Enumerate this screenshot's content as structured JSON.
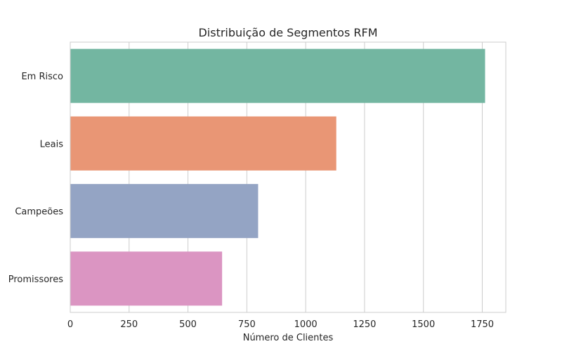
{
  "chart_data": {
    "type": "bar",
    "orientation": "horizontal",
    "title": "Distribuição de Segmentos RFM",
    "xlabel": "Número de Clientes",
    "ylabel": "",
    "categories": [
      "Em Risco",
      "Leais",
      "Campeões",
      "Promissores"
    ],
    "values": [
      1762,
      1130,
      798,
      645
    ],
    "xlim": [
      0,
      1850
    ],
    "xticks": [
      0,
      250,
      500,
      750,
      1000,
      1250,
      1500,
      1750
    ],
    "grid": "vertical",
    "legend": "none",
    "colors": [
      "#73b6a1",
      "#e99675",
      "#94a4c4",
      "#db95c2"
    ]
  }
}
